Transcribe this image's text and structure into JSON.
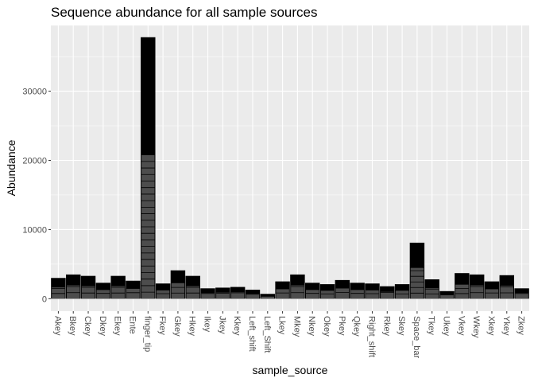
{
  "chart_data": {
    "type": "bar",
    "title": "Sequence abundance for all sample sources",
    "xlabel": "sample_source",
    "ylabel": "Abundance",
    "ylim": [
      -1800,
      39500
    ],
    "yticks": [
      0,
      10000,
      20000,
      30000
    ],
    "ytick_labels": [
      "0",
      "10000",
      "20000",
      "30000"
    ],
    "grid": true,
    "panel_background": "#ebebeb",
    "grid_color": "#ffffff",
    "bar_fill_top": "#000000",
    "bar_fill_lower": "#4d4d4d",
    "categories": [
      "Akey",
      "Bkey",
      "Ckey",
      "Dkey",
      "Ekey",
      "Ente",
      "finger_tip",
      "Fkey",
      "Gkey",
      "Hkey",
      "Ikey",
      "Jkey",
      "Kkey",
      "Left_shift",
      "Left_Shift",
      "Lkey",
      "Mkey",
      "Nkey",
      "Okey",
      "Pkey",
      "Qkey",
      "Right_shift",
      "Rkey",
      "Skey",
      "Space_bar",
      "Tkey",
      "Ukey",
      "Vkey",
      "Wkey",
      "Xkey",
      "Ykey",
      "Zkey"
    ],
    "values": [
      3000,
      3500,
      3300,
      2300,
      3300,
      2600,
      37800,
      2200,
      4100,
      3300,
      1500,
      1600,
      1700,
      1300,
      700,
      2500,
      3500,
      2300,
      2100,
      2700,
      2300,
      2200,
      1800,
      2100,
      8100,
      2800,
      1100,
      3700,
      3500,
      2500,
      3400,
      1500
    ]
  }
}
